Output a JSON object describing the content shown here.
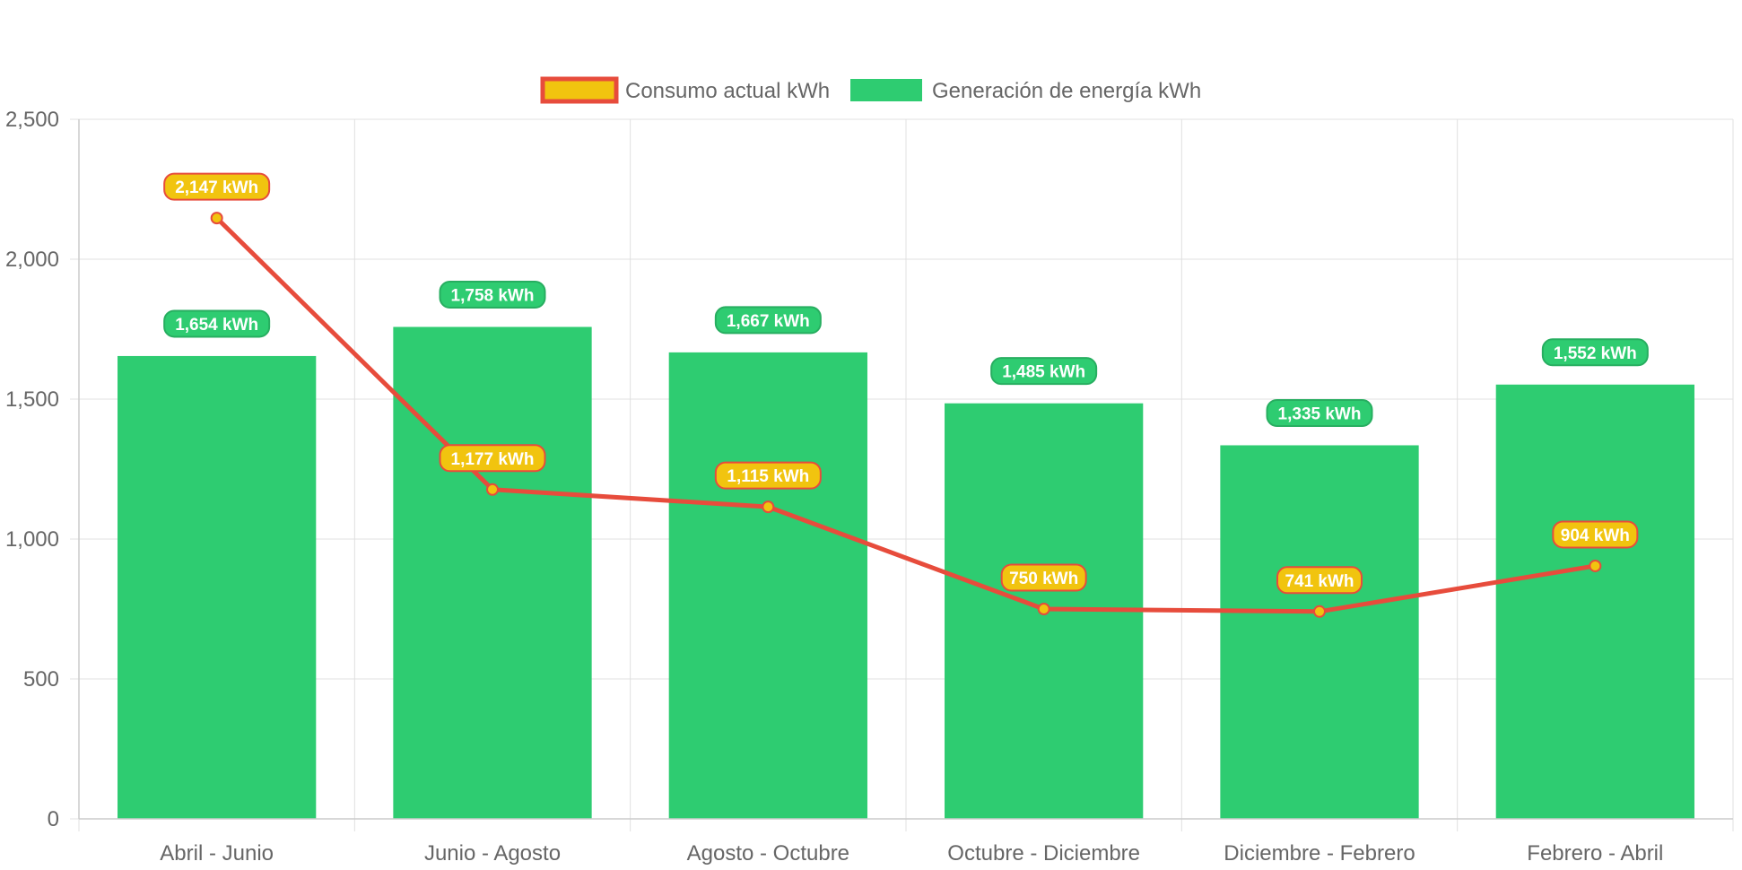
{
  "chart_data": {
    "type": "bar",
    "categories": [
      "Abril - Junio",
      "Junio - Agosto",
      "Agosto - Octubre",
      "Octubre - Diciembre",
      "Diciembre - Febrero",
      "Febrero - Abril"
    ],
    "series": [
      {
        "name": "Consumo actual kWh",
        "type": "line",
        "values": [
          2147,
          1177,
          1115,
          750,
          741,
          904
        ],
        "labels": [
          "2,147 kWh",
          "1,177 kWh",
          "1,115 kWh",
          "750 kWh",
          "741 kWh",
          "904 kWh"
        ],
        "color": "#e74c3c",
        "fill": "#f1c40f"
      },
      {
        "name": "Generación de energía kWh",
        "type": "bar",
        "values": [
          1654,
          1758,
          1667,
          1485,
          1335,
          1552
        ],
        "labels": [
          "1,654 kWh",
          "1,758 kWh",
          "1,667 kWh",
          "1,485 kWh",
          "1,335 kWh",
          "1,552 kWh"
        ],
        "color": "#2ecc71"
      }
    ],
    "yticks": [
      "0",
      "500",
      "1,000",
      "1,500",
      "2,000",
      "2,500"
    ],
    "ytick_values": [
      0,
      500,
      1000,
      1500,
      2000,
      2500
    ],
    "ylim": [
      0,
      2500
    ],
    "legend_position": "top",
    "grid": true,
    "grid_color": "#e0e0e0",
    "axis_color": "#cccccc"
  }
}
